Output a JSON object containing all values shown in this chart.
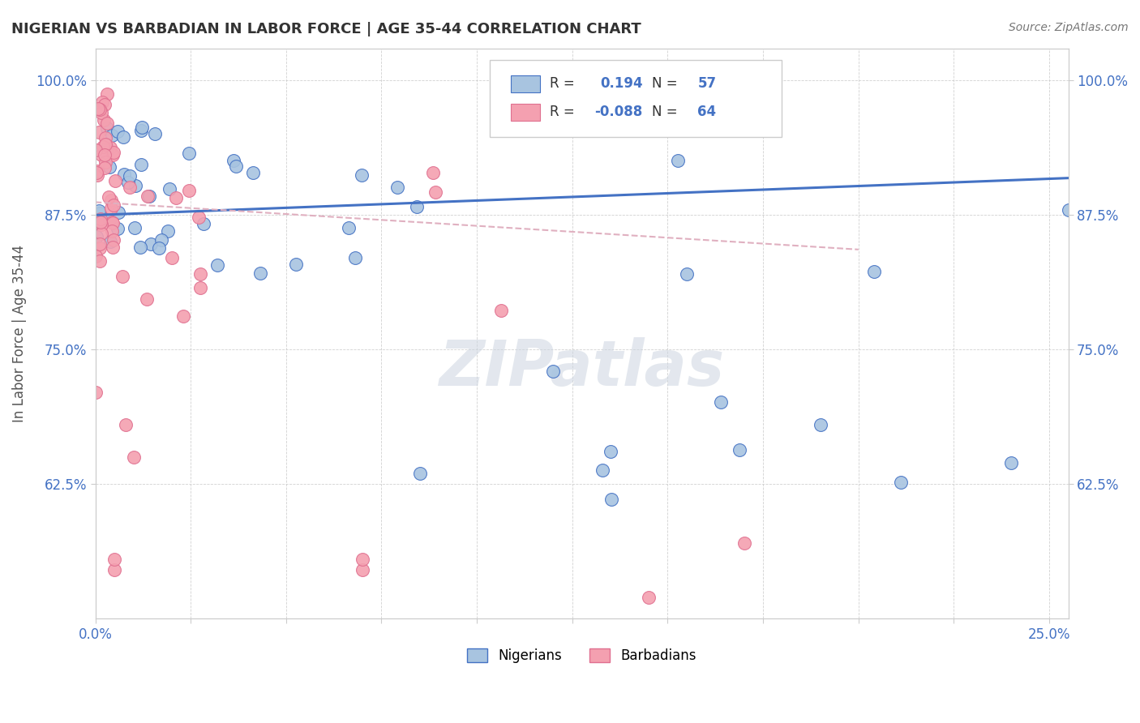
{
  "title": "NIGERIAN VS BARBADIAN IN LABOR FORCE | AGE 35-44 CORRELATION CHART",
  "source": "Source: ZipAtlas.com",
  "ylabel": "In Labor Force | Age 35-44",
  "y_ticks": [
    0.625,
    0.75,
    0.875,
    1.0
  ],
  "y_tick_labels": [
    "62.5%",
    "75.0%",
    "87.5%",
    "100.0%"
  ],
  "x_lim": [
    0.0,
    0.255
  ],
  "y_lim": [
    0.5,
    1.03
  ],
  "legend_blue_r_val": "0.194",
  "legend_blue_n_val": "57",
  "legend_pink_r_val": "-0.088",
  "legend_pink_n_val": "64",
  "blue_fill": "#a8c4e0",
  "blue_edge": "#4472c4",
  "pink_fill": "#f4a0b0",
  "pink_edge": "#e07090",
  "watermark": "ZIPatlas",
  "grid_color": "#cccccc",
  "text_color": "#333333",
  "tick_color": "#4472c4"
}
